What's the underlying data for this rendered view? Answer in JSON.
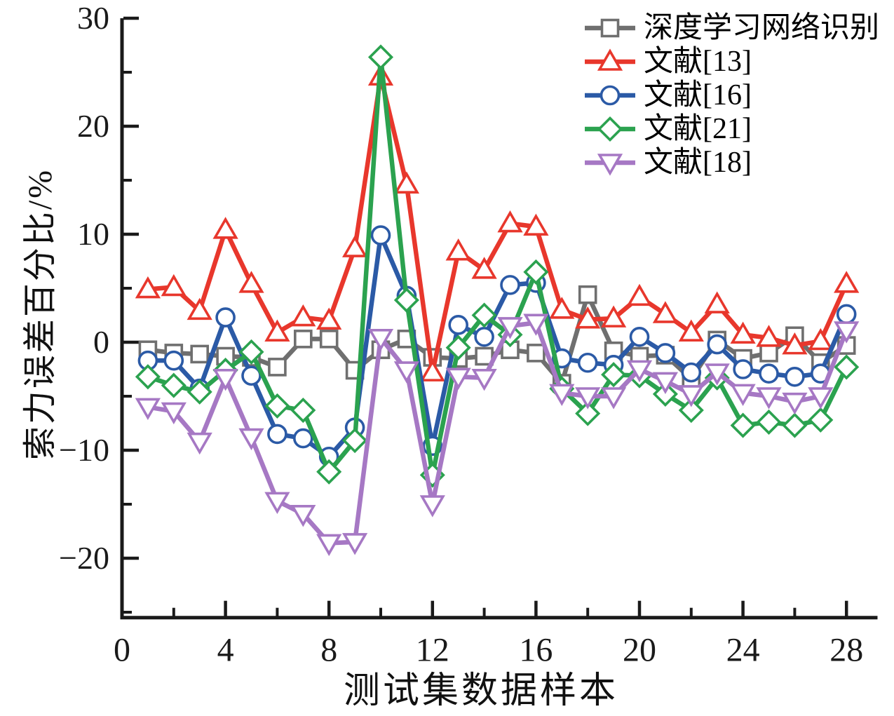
{
  "chart_data": {
    "type": "line",
    "title": "",
    "xlabel": "测试集数据样本",
    "ylabel": "索力误差百分比/%",
    "x": [
      1,
      2,
      3,
      4,
      5,
      6,
      7,
      8,
      9,
      10,
      11,
      12,
      13,
      14,
      15,
      16,
      17,
      18,
      19,
      20,
      21,
      22,
      23,
      24,
      25,
      26,
      27,
      28
    ],
    "xlim": [
      0,
      29.2
    ],
    "ylim": [
      -25.5,
      30
    ],
    "grid": false,
    "legend_position": "top-right",
    "x_ticks": [
      0,
      4,
      8,
      12,
      16,
      20,
      24,
      28
    ],
    "x_minor_ticks": [
      2,
      6,
      10,
      14,
      18,
      22,
      26
    ],
    "y_ticks": [
      30,
      20,
      10,
      0,
      -10,
      -20
    ],
    "y_minor_ticks": [
      25,
      15,
      5,
      -5,
      -15,
      -25
    ],
    "axis_color": "#1a1a1a",
    "series": [
      {
        "name": "深度学习网络识别",
        "color": "#6f6f6f",
        "marker": "square",
        "values": [
          -0.7,
          -1.0,
          -1.1,
          -1.3,
          -1.4,
          -2.3,
          0.3,
          0.3,
          -2.6,
          -0.7,
          0.3,
          -1.4,
          -1.5,
          -1.3,
          -0.7,
          -1.0,
          -3.8,
          4.4,
          -0.8,
          -1.3,
          -1.2,
          -3.4,
          0.2,
          -1.5,
          -1.0,
          0.6,
          -1.9,
          -0.3
        ]
      },
      {
        "name": "文献[13]",
        "color": "#e8372c",
        "marker": "triangle-up",
        "values": [
          4.9,
          5.1,
          2.9,
          10.4,
          5.4,
          0.9,
          2.3,
          2.0,
          8.7,
          24.6,
          14.6,
          -2.8,
          8.4,
          6.7,
          11.0,
          10.7,
          3.0,
          2.1,
          2.2,
          4.2,
          2.6,
          0.9,
          3.5,
          0.7,
          0.4,
          -0.3,
          0.1,
          5.4
        ]
      },
      {
        "name": "文献[16]",
        "color": "#2b5aa6",
        "marker": "circle",
        "values": [
          -1.7,
          -1.7,
          -4.3,
          2.3,
          -3.1,
          -8.5,
          -8.9,
          -10.6,
          -7.9,
          9.9,
          4.3,
          -9.6,
          1.6,
          0.5,
          5.3,
          5.5,
          -1.5,
          -1.9,
          -2.1,
          0.5,
          -1.0,
          -2.8,
          -0.2,
          -2.5,
          -2.9,
          -3.2,
          -2.9,
          2.6
        ]
      },
      {
        "name": "文献[21]",
        "color": "#2ba24f",
        "marker": "diamond",
        "values": [
          -3.2,
          -4.0,
          -4.6,
          -2.6,
          -0.9,
          -5.9,
          -6.3,
          -12.0,
          -9.1,
          26.4,
          3.9,
          -12.3,
          -0.5,
          2.5,
          0.7,
          6.5,
          -4.3,
          -6.6,
          -3.0,
          -3.1,
          -4.8,
          -6.3,
          -3.3,
          -7.7,
          -7.4,
          -7.7,
          -7.2,
          -2.3
        ]
      },
      {
        "name": "文献[18]",
        "color": "#a678c4",
        "marker": "triangle-down",
        "values": [
          -6.0,
          -6.4,
          -9.2,
          -3.3,
          -8.8,
          -14.7,
          -15.9,
          -18.6,
          -18.5,
          0.4,
          -2.6,
          -15.0,
          -3.2,
          -3.3,
          1.5,
          1.8,
          -4.7,
          -5.0,
          -5.0,
          -2.5,
          -3.6,
          -4.8,
          -2.8,
          -4.7,
          -5.0,
          -5.5,
          -5.0,
          1.1
        ]
      }
    ]
  }
}
